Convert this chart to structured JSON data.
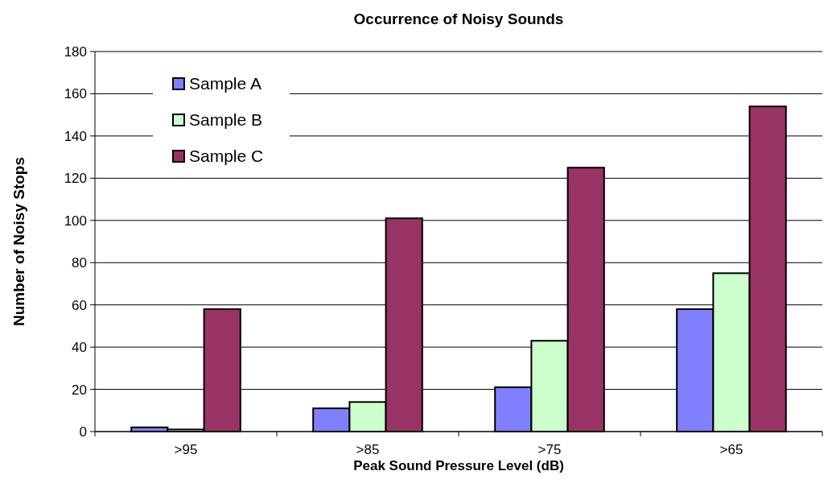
{
  "chart_data": {
    "type": "bar",
    "title": "Occurrence of Noisy Sounds",
    "xlabel": "Peak Sound Pressure Level (dB)",
    "ylabel": "Number of Noisy Stops",
    "categories": [
      ">95",
      ">85",
      ">75",
      ">65"
    ],
    "series": [
      {
        "name": "Sample A",
        "color": "#8080ff",
        "values": [
          2,
          11,
          21,
          58
        ]
      },
      {
        "name": "Sample B",
        "color": "#ccffcc",
        "values": [
          1,
          14,
          43,
          75
        ]
      },
      {
        "name": "Sample C",
        "color": "#993366",
        "values": [
          58,
          101,
          125,
          154
        ]
      }
    ],
    "ylim": [
      0,
      180
    ],
    "yticks": [
      0,
      20,
      40,
      60,
      80,
      100,
      120,
      140,
      160,
      180
    ],
    "grid": "y",
    "legend": "top left"
  }
}
